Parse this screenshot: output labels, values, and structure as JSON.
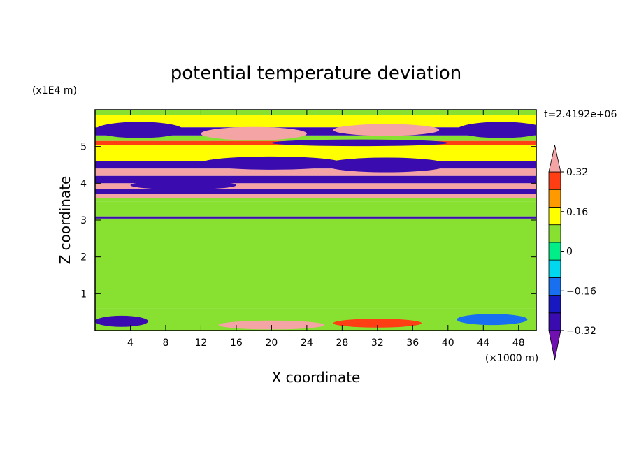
{
  "chart_data": {
    "type": "heatmap",
    "title": "potential temperature deviation",
    "xlabel": "X coordinate",
    "ylabel": "Z coordinate",
    "x_unit": "(×1000 m)",
    "y_unit": "(x1E4 m)",
    "time_label": "t=2.4192e+06",
    "xlim": [
      0,
      50
    ],
    "ylim": [
      0,
      6
    ],
    "x_ticks": [
      4,
      8,
      12,
      16,
      20,
      24,
      28,
      32,
      36,
      40,
      44,
      48
    ],
    "y_ticks": [
      1,
      2,
      3,
      4,
      5
    ],
    "colorbar": {
      "tick_labels": [
        "0.32",
        "0.16",
        "0",
        "−0.16",
        "−0.32"
      ],
      "tick_values": [
        0.32,
        0.16,
        0,
        -0.16,
        -0.32
      ],
      "levels": [
        -0.4,
        -0.32,
        -0.24,
        -0.16,
        -0.08,
        0,
        0.08,
        0.16,
        0.24,
        0.32,
        0.4
      ],
      "colors_low_to_high": [
        "#7010b0",
        "#3a0cb0",
        "#1818c0",
        "#1870f0",
        "#00d8f0",
        "#00ee88",
        "#88e030",
        "#ffff00",
        "#ff9900",
        "#ff3e14",
        "#f4a4a4"
      ],
      "extend": "both"
    },
    "bands": [
      {
        "z0": 5.85,
        "z1": 6.0,
        "level": 0.0
      },
      {
        "z0": 5.52,
        "z1": 5.85,
        "level": 0.08
      },
      {
        "z0": 5.3,
        "z1": 5.52,
        "level": -0.36
      },
      {
        "z0": 5.15,
        "z1": 5.3,
        "level": 0.05
      },
      {
        "z0": 5.05,
        "z1": 5.15,
        "level": 0.28
      },
      {
        "z0": 4.6,
        "z1": 5.05,
        "level": 0.08
      },
      {
        "z0": 4.4,
        "z1": 4.6,
        "level": -0.36
      },
      {
        "z0": 4.2,
        "z1": 4.4,
        "level": 0.4
      },
      {
        "z0": 4.0,
        "z1": 4.2,
        "level": -0.36
      },
      {
        "z0": 3.85,
        "z1": 4.0,
        "level": 0.4
      },
      {
        "z0": 3.72,
        "z1": 3.85,
        "level": -0.36
      },
      {
        "z0": 3.6,
        "z1": 3.72,
        "level": 0.4
      },
      {
        "z0": 3.5,
        "z1": 3.6,
        "level": 0.0
      },
      {
        "z0": 3.1,
        "z1": 3.5,
        "level": 0.04
      },
      {
        "z0": 3.04,
        "z1": 3.1,
        "level": -0.36
      },
      {
        "z0": 0.6,
        "z1": 3.04,
        "level": 0.06
      },
      {
        "z0": 0.0,
        "z1": 0.6,
        "level": 0.0
      }
    ],
    "blobs": [
      {
        "x": 5,
        "z": 5.45,
        "rx": 5,
        "rz": 0.22,
        "level": -0.36
      },
      {
        "x": 46,
        "z": 5.45,
        "rx": 5,
        "rz": 0.22,
        "level": -0.36
      },
      {
        "x": 18,
        "z": 5.35,
        "rx": 6,
        "rz": 0.18,
        "level": 0.32
      },
      {
        "x": 33,
        "z": 5.45,
        "rx": 6,
        "rz": 0.16,
        "level": 0.32
      },
      {
        "x": 30,
        "z": 5.1,
        "rx": 10,
        "rz": 0.09,
        "level": -0.36
      },
      {
        "x": 20,
        "z": 4.55,
        "rx": 8,
        "rz": 0.18,
        "level": -0.36
      },
      {
        "x": 33,
        "z": 4.5,
        "rx": 7,
        "rz": 0.2,
        "level": -0.36
      },
      {
        "x": 10,
        "z": 3.95,
        "rx": 6,
        "rz": 0.12,
        "level": -0.36
      },
      {
        "x": 20,
        "z": 0.15,
        "rx": 6,
        "rz": 0.12,
        "level": 0.32
      },
      {
        "x": 32,
        "z": 0.2,
        "rx": 5,
        "rz": 0.12,
        "level": 0.24
      },
      {
        "x": 3,
        "z": 0.25,
        "rx": 3,
        "rz": 0.15,
        "level": -0.36
      },
      {
        "x": 45,
        "z": 0.3,
        "rx": 4,
        "rz": 0.15,
        "level": -0.24
      }
    ]
  }
}
